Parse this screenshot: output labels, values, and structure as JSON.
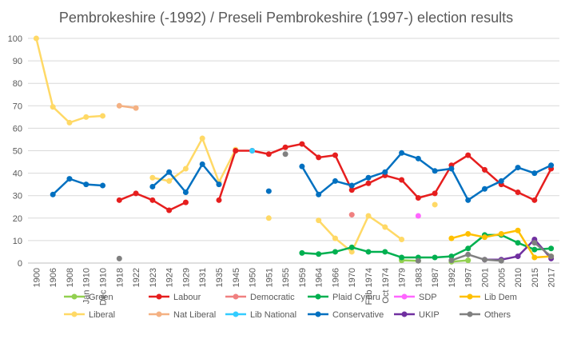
{
  "chart_data": {
    "type": "line",
    "title": "Pembrokeshire (-1992) / Preseli Pembrokeshire (1997-) election results",
    "xlabel": "",
    "ylabel": "",
    "ylim": [
      0,
      100
    ],
    "yticks": [
      0,
      10,
      20,
      30,
      40,
      50,
      60,
      70,
      80,
      90,
      100
    ],
    "grid": true,
    "legend_position": "bottom",
    "categories": [
      "1900",
      "1906",
      "1908",
      "Jan 1910",
      "Dec 1910",
      "1918",
      "1922",
      "1923",
      "1924",
      "1929",
      "1931",
      "1935",
      "1945",
      "1950",
      "1951",
      "1955",
      "1959",
      "1964",
      "1966",
      "1970",
      "Feb 1974",
      "Oct 1974",
      "1979",
      "1983",
      "1987",
      "1992",
      "1997",
      "2001",
      "2005",
      "2010",
      "2015",
      "2017"
    ],
    "series": [
      {
        "name": "Green",
        "color": "#92d050",
        "values": [
          null,
          null,
          null,
          null,
          null,
          null,
          null,
          null,
          null,
          null,
          null,
          null,
          null,
          null,
          null,
          null,
          null,
          null,
          null,
          null,
          null,
          null,
          1.2,
          1.0,
          null,
          0.6,
          1.2,
          null,
          null,
          null,
          null,
          null
        ]
      },
      {
        "name": "Liberal",
        "color": "#ffd966",
        "values": [
          100,
          69.5,
          62.5,
          65,
          65.5,
          null,
          null,
          38,
          36.5,
          42,
          55.5,
          36,
          50.5,
          null,
          20,
          null,
          null,
          19,
          11,
          5,
          21,
          16,
          10.5,
          null,
          26,
          null,
          null,
          null,
          null,
          null,
          null,
          null
        ]
      },
      {
        "name": "Labour",
        "color": "#e61e1e",
        "values": [
          null,
          null,
          null,
          null,
          null,
          28,
          31,
          28,
          23.5,
          27,
          null,
          28,
          50,
          50,
          48.5,
          51.5,
          53,
          47,
          48,
          32.5,
          35.5,
          39,
          37,
          29,
          31,
          43.5,
          48,
          41.5,
          35,
          31.5,
          28,
          42
        ]
      },
      {
        "name": "Nat Liberal",
        "color": "#f4b183",
        "values": [
          null,
          null,
          null,
          null,
          null,
          70,
          69,
          null,
          null,
          null,
          null,
          null,
          null,
          null,
          null,
          null,
          null,
          null,
          null,
          null,
          null,
          null,
          null,
          null,
          null,
          null,
          null,
          null,
          null,
          null,
          null,
          null
        ]
      },
      {
        "name": "Democratic",
        "color": "#f08080",
        "values": [
          null,
          null,
          null,
          null,
          null,
          null,
          null,
          null,
          null,
          null,
          null,
          null,
          null,
          null,
          null,
          null,
          null,
          null,
          null,
          21.5,
          null,
          null,
          null,
          null,
          null,
          null,
          null,
          null,
          null,
          null,
          null,
          null
        ]
      },
      {
        "name": "Lib National",
        "color": "#33ccff",
        "values": [
          null,
          null,
          null,
          null,
          null,
          null,
          null,
          null,
          null,
          null,
          null,
          null,
          null,
          50,
          null,
          null,
          null,
          null,
          null,
          null,
          null,
          null,
          null,
          null,
          null,
          null,
          null,
          null,
          null,
          null,
          null,
          null
        ]
      },
      {
        "name": "Plaid Cymru",
        "color": "#00b050",
        "values": [
          null,
          null,
          null,
          null,
          null,
          null,
          null,
          null,
          null,
          null,
          null,
          null,
          null,
          null,
          null,
          null,
          4.5,
          4,
          5,
          7,
          5,
          5,
          2.5,
          2.5,
          2.5,
          3,
          6.5,
          12.5,
          12.5,
          9,
          6,
          6.5
        ]
      },
      {
        "name": "Conservative",
        "color": "#0070c0",
        "values": [
          null,
          30.5,
          37.5,
          35,
          34.5,
          null,
          null,
          34,
          40.5,
          31.5,
          44,
          35,
          null,
          null,
          32,
          null,
          43,
          30.5,
          36.5,
          34.5,
          38,
          40.5,
          49,
          46.5,
          41,
          42,
          28,
          33,
          36.5,
          42.5,
          40,
          43.5
        ]
      },
      {
        "name": "SDP",
        "color": "#ff66ff",
        "values": [
          null,
          null,
          null,
          null,
          null,
          null,
          null,
          null,
          null,
          null,
          null,
          null,
          null,
          null,
          null,
          null,
          null,
          null,
          null,
          null,
          null,
          null,
          null,
          21,
          null,
          null,
          null,
          null,
          null,
          null,
          null,
          null
        ]
      },
      {
        "name": "UKIP",
        "color": "#7030a0",
        "values": [
          null,
          null,
          null,
          null,
          null,
          null,
          null,
          null,
          null,
          null,
          null,
          null,
          null,
          null,
          null,
          null,
          null,
          null,
          null,
          null,
          null,
          null,
          null,
          null,
          null,
          null,
          null,
          1.5,
          1.5,
          3,
          10.5,
          2
        ]
      },
      {
        "name": "Lib Dem",
        "color": "#ffc000",
        "values": [
          null,
          null,
          null,
          null,
          null,
          null,
          null,
          null,
          null,
          null,
          null,
          null,
          null,
          null,
          null,
          null,
          null,
          null,
          null,
          null,
          null,
          null,
          null,
          null,
          null,
          11,
          13,
          11.5,
          13,
          14.5,
          2.5,
          3
        ]
      },
      {
        "name": "Others",
        "color": "#808080",
        "values": [
          null,
          null,
          null,
          null,
          null,
          2,
          null,
          null,
          null,
          null,
          null,
          null,
          null,
          null,
          null,
          48.5,
          null,
          null,
          null,
          null,
          null,
          null,
          null,
          1,
          null,
          1.2,
          3.8,
          1.5,
          1,
          null,
          9,
          3
        ]
      }
    ]
  }
}
